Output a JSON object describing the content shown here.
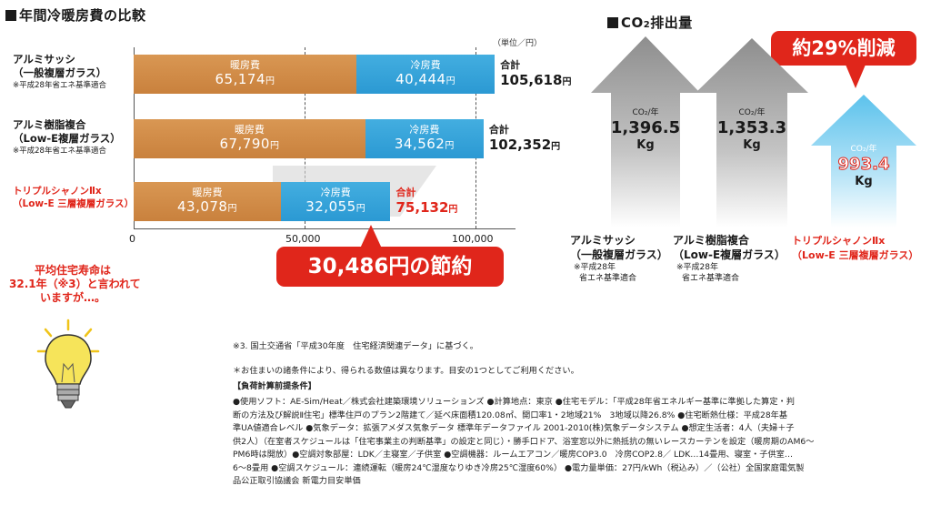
{
  "cost_section": {
    "title": "年間冷暖房費の比較",
    "unit": "（単位／円）",
    "rows": [
      {
        "label_line1": "アルミサッシ",
        "label_line2": "（一般複層ガラス）",
        "note": "※平成28年省エネ基準適合",
        "heating_label": "暖房費",
        "heating_value": "65,174",
        "cooling_label": "冷房費",
        "cooling_value": "40,444",
        "total_label": "合計",
        "total_value": "105,618",
        "yen": "円"
      },
      {
        "label_line1": "アルミ樹脂複合",
        "label_line2": "（Low-E複層ガラス）",
        "note": "※平成28年省エネ基準適合",
        "heating_label": "暖房費",
        "heating_value": "67,790",
        "cooling_label": "冷房費",
        "cooling_value": "34,562",
        "total_label": "合計",
        "total_value": "102,352",
        "yen": "円"
      },
      {
        "label_line1": "トリプルシャノンⅡx",
        "label_line2": "（Low-E 三層複層ガラス）",
        "note": "",
        "heating_label": "暖房費",
        "heating_value": "43,078",
        "cooling_label": "冷房費",
        "cooling_value": "32,055",
        "total_label": "合計",
        "total_value": "75,132",
        "yen": "円"
      }
    ],
    "x_ticks": [
      "0",
      "50,000",
      "100,000"
    ],
    "savings": "30,486円の節約"
  },
  "co2_section": {
    "title_prefix": "CO",
    "title_sub": "2",
    "title_suffix": "排出量",
    "reduction": "約29%削減",
    "unit_label": "CO₂/年",
    "kg": "Kg",
    "items": [
      {
        "value": "1,396.5",
        "label_line1": "アルミサッシ",
        "label_line2": "（一般複層ガラス）",
        "note1": "※平成28年",
        "note2": "省エネ基準適合"
      },
      {
        "value": "1,353.3",
        "label_line1": "アルミ樹脂複合",
        "label_line2": "（Low-E複層ガラス）",
        "note1": "※平成28年",
        "note2": "省エネ基準適合"
      },
      {
        "value": "993.4",
        "label_line1": "トリプルシャノンⅡx",
        "label_line2": "（Low-E 三層複層ガラス）",
        "note1": "",
        "note2": ""
      }
    ]
  },
  "lifespan": {
    "line1": "平均住宅寿命は",
    "line2": "32.1年（※3）と言われて",
    "line3": "いますが…。"
  },
  "footnotes": {
    "note3": "※3. 国土交通省「平成30年度　住宅経済関連データ」に基づく。",
    "disclaimer": "＊お住まいの諸条件により、得られる数値は異なります。目安の1つとしてご利用ください。",
    "heading": "【負荷計算前提条件】",
    "line1": "●使用ソフト：AE-Sim/Heat／株式会社建築環境ソリューションズ ●計算地点：東京 ●住宅モデル：「平成28年省エネルギー基準に準拠した算定・判",
    "line2": "断の方法及び解説Ⅱ住宅」標準住戸のプラン2階建て／延べ床面積120.08㎡、開口率1・2地域21%　3地域以降26.8% ●住宅断熱仕様：平成28年基",
    "line3": "準UA値適合レベル ●気象データ：拡張アメダス気象データ 標準年データファイル 2001-2010(株)気象データシステム ●想定生活者：4人（夫婦＋子",
    "line4": "供2人）（在室者スケジュールは「住宅事業主の判断基準」の設定と同じ）・勝手口ドア、浴室窓以外に熱抵抗の無いレースカーテンを設定（暖房期のAM6～",
    "line5": "PM6時は開放）●空調対象部屋：LDK／主寝室／子供室 ●空調機器：ルームエアコン／暖房COP3.0　冷房COP2.8／ LDK…14畳用、寝室・子供室…",
    "line6": "6～8畳用 ●空調スケジュール：連続運転（暖房24℃湿度なりゆき冷房25℃湿度60%） ●電力量単価：27円/kWh（税込み）／（公社）全国家庭電気製",
    "line7": "品公正取引協議会 新電力目安単価"
  },
  "colors": {
    "heating": "#d4914c",
    "cooling": "#35a5dc",
    "accent_red": "#e0261b",
    "arrow_gray": "#a8a8a8",
    "arrow_blue": "#5cc2ec"
  },
  "chart_data": [
    {
      "type": "bar",
      "orientation": "horizontal",
      "stacked": true,
      "title": "年間冷暖房費の比較",
      "unit": "円",
      "categories": [
        "アルミサッシ（一般複層ガラス）",
        "アルミ樹脂複合（Low-E複層ガラス）",
        "トリプルシャノンⅡx（Low-E 三層複層ガラス）"
      ],
      "series": [
        {
          "name": "暖房費",
          "values": [
            65174,
            67790,
            43078
          ]
        },
        {
          "name": "冷房費",
          "values": [
            40444,
            34562,
            32055
          ]
        }
      ],
      "totals": [
        105618,
        102352,
        75132
      ],
      "xlim": [
        0,
        110000
      ],
      "x_ticks": [
        0,
        50000,
        100000
      ],
      "grid": "dashed vertical at 50000 and 100000"
    },
    {
      "type": "bar",
      "title": "CO₂排出量",
      "unit": "Kg CO₂/年",
      "categories": [
        "アルミサッシ（一般複層ガラス）",
        "アルミ樹脂複合（Low-E複層ガラス）",
        "トリプルシャノンⅡx（Low-E 三層複層ガラス）"
      ],
      "values": [
        1396.5,
        1353.3,
        993.4
      ],
      "annotation": "約29%削減"
    }
  ]
}
